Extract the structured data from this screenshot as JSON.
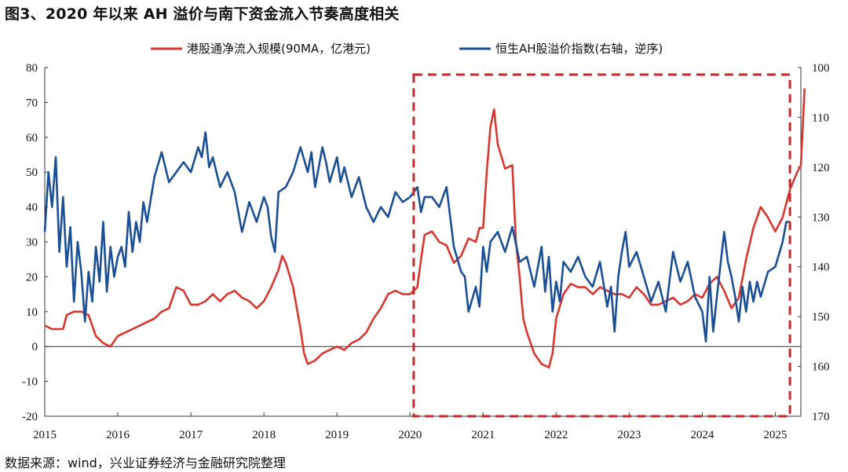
{
  "title": "图3、2020 年以来 AH 溢价与南下资金流入节奏高度相关",
  "source": "数据来源：wind，兴业证券经济与金融研究院整理",
  "colors": {
    "red": "#d9362f",
    "blue": "#1a4f96",
    "highlight": "#c8262a"
  },
  "chart_data": {
    "type": "line",
    "legend": [
      "港股通净流入规模(90MA，亿港元)",
      "恒生AH股溢价指数(右轴，逆序)"
    ],
    "legend_position": "top",
    "x_ticks": [
      "2015",
      "2016",
      "2017",
      "2018",
      "2019",
      "2020",
      "2021",
      "2022",
      "2023",
      "2024",
      "2025"
    ],
    "y_left": {
      "range": [
        -20,
        80
      ],
      "ticks": [
        "-20",
        "-10",
        "0",
        "10",
        "20",
        "30",
        "40",
        "50",
        "60",
        "70",
        "80"
      ]
    },
    "y_right": {
      "range": [
        100,
        170
      ],
      "inverted": true,
      "ticks": [
        "100",
        "110",
        "120",
        "130",
        "140",
        "150",
        "160",
        "170"
      ]
    },
    "highlight_box": {
      "x_start": 2020.05,
      "x_end": 2025.2,
      "style": "dashed"
    },
    "series": [
      {
        "name": "港股通净流入规模(90MA，亿港元)",
        "axis": "left",
        "color": "#d9362f",
        "points": [
          [
            2015.0,
            6
          ],
          [
            2015.1,
            5
          ],
          [
            2015.25,
            5
          ],
          [
            2015.3,
            9
          ],
          [
            2015.4,
            10
          ],
          [
            2015.5,
            10
          ],
          [
            2015.6,
            9
          ],
          [
            2015.7,
            3
          ],
          [
            2015.8,
            1
          ],
          [
            2015.9,
            0
          ],
          [
            2016.0,
            3
          ],
          [
            2016.2,
            5
          ],
          [
            2016.4,
            7
          ],
          [
            2016.5,
            8
          ],
          [
            2016.6,
            10
          ],
          [
            2016.7,
            11
          ],
          [
            2016.8,
            17
          ],
          [
            2016.9,
            16
          ],
          [
            2017.0,
            12
          ],
          [
            2017.1,
            12
          ],
          [
            2017.2,
            13
          ],
          [
            2017.3,
            15
          ],
          [
            2017.4,
            13
          ],
          [
            2017.5,
            15
          ],
          [
            2017.6,
            16
          ],
          [
            2017.7,
            14
          ],
          [
            2017.8,
            13
          ],
          [
            2017.9,
            11
          ],
          [
            2018.0,
            13
          ],
          [
            2018.1,
            17
          ],
          [
            2018.2,
            22
          ],
          [
            2018.25,
            26
          ],
          [
            2018.3,
            24
          ],
          [
            2018.4,
            17
          ],
          [
            2018.5,
            5
          ],
          [
            2018.55,
            -2
          ],
          [
            2018.6,
            -5
          ],
          [
            2018.7,
            -4
          ],
          [
            2018.8,
            -2
          ],
          [
            2018.9,
            -1
          ],
          [
            2019.0,
            0
          ],
          [
            2019.1,
            -1
          ],
          [
            2019.2,
            1
          ],
          [
            2019.3,
            2
          ],
          [
            2019.4,
            4
          ],
          [
            2019.5,
            8
          ],
          [
            2019.6,
            11
          ],
          [
            2019.7,
            15
          ],
          [
            2019.8,
            16
          ],
          [
            2019.9,
            15
          ],
          [
            2020.0,
            15
          ],
          [
            2020.1,
            17
          ],
          [
            2020.15,
            25
          ],
          [
            2020.2,
            32
          ],
          [
            2020.3,
            33
          ],
          [
            2020.4,
            30
          ],
          [
            2020.5,
            29
          ],
          [
            2020.6,
            24
          ],
          [
            2020.7,
            26
          ],
          [
            2020.8,
            31
          ],
          [
            2020.9,
            30
          ],
          [
            2020.95,
            34
          ],
          [
            2021.0,
            34
          ],
          [
            2021.05,
            50
          ],
          [
            2021.1,
            63
          ],
          [
            2021.15,
            68
          ],
          [
            2021.2,
            58
          ],
          [
            2021.3,
            51
          ],
          [
            2021.4,
            52
          ],
          [
            2021.45,
            30
          ],
          [
            2021.5,
            20
          ],
          [
            2021.55,
            8
          ],
          [
            2021.6,
            4
          ],
          [
            2021.7,
            -2
          ],
          [
            2021.8,
            -5
          ],
          [
            2021.9,
            -6
          ],
          [
            2021.95,
            -2
          ],
          [
            2022.0,
            8
          ],
          [
            2022.1,
            15
          ],
          [
            2022.2,
            18
          ],
          [
            2022.3,
            17
          ],
          [
            2022.4,
            17
          ],
          [
            2022.5,
            15
          ],
          [
            2022.6,
            17
          ],
          [
            2022.7,
            16
          ],
          [
            2022.8,
            15
          ],
          [
            2022.9,
            15
          ],
          [
            2023.0,
            14
          ],
          [
            2023.1,
            17
          ],
          [
            2023.2,
            15
          ],
          [
            2023.3,
            12
          ],
          [
            2023.4,
            12
          ],
          [
            2023.5,
            13
          ],
          [
            2023.6,
            14
          ],
          [
            2023.7,
            12
          ],
          [
            2023.8,
            13
          ],
          [
            2023.9,
            15
          ],
          [
            2024.0,
            14
          ],
          [
            2024.1,
            18
          ],
          [
            2024.2,
            20
          ],
          [
            2024.3,
            16
          ],
          [
            2024.4,
            11
          ],
          [
            2024.5,
            14
          ],
          [
            2024.6,
            25
          ],
          [
            2024.7,
            34
          ],
          [
            2024.8,
            40
          ],
          [
            2024.9,
            37
          ],
          [
            2025.0,
            33
          ],
          [
            2025.1,
            37
          ],
          [
            2025.2,
            45
          ],
          [
            2025.3,
            50
          ],
          [
            2025.35,
            52
          ],
          [
            2025.4,
            74
          ]
        ]
      },
      {
        "name": "恒生AH股溢价指数(右轴，逆序)",
        "axis": "right",
        "color": "#1a4f96",
        "points": [
          [
            2015.0,
            133
          ],
          [
            2015.05,
            121
          ],
          [
            2015.1,
            128
          ],
          [
            2015.15,
            118
          ],
          [
            2015.2,
            137
          ],
          [
            2015.25,
            126
          ],
          [
            2015.3,
            140
          ],
          [
            2015.35,
            132
          ],
          [
            2015.4,
            147
          ],
          [
            2015.45,
            135
          ],
          [
            2015.5,
            141
          ],
          [
            2015.55,
            151
          ],
          [
            2015.6,
            141
          ],
          [
            2015.65,
            147
          ],
          [
            2015.7,
            136
          ],
          [
            2015.75,
            143
          ],
          [
            2015.8,
            131
          ],
          [
            2015.85,
            145
          ],
          [
            2015.9,
            136
          ],
          [
            2015.95,
            142
          ],
          [
            2016.0,
            138
          ],
          [
            2016.05,
            136
          ],
          [
            2016.1,
            140
          ],
          [
            2016.15,
            129
          ],
          [
            2016.2,
            137
          ],
          [
            2016.25,
            131
          ],
          [
            2016.3,
            135
          ],
          [
            2016.35,
            127
          ],
          [
            2016.4,
            131
          ],
          [
            2016.5,
            122
          ],
          [
            2016.6,
            117
          ],
          [
            2016.7,
            123
          ],
          [
            2016.8,
            121
          ],
          [
            2016.9,
            119
          ],
          [
            2017.0,
            121
          ],
          [
            2017.1,
            116
          ],
          [
            2017.15,
            118
          ],
          [
            2017.2,
            113
          ],
          [
            2017.25,
            120
          ],
          [
            2017.3,
            118
          ],
          [
            2017.4,
            124
          ],
          [
            2017.5,
            121
          ],
          [
            2017.6,
            125
          ],
          [
            2017.7,
            133
          ],
          [
            2017.8,
            127
          ],
          [
            2017.9,
            131
          ],
          [
            2018.0,
            126
          ],
          [
            2018.05,
            128
          ],
          [
            2018.1,
            134
          ],
          [
            2018.15,
            137
          ],
          [
            2018.2,
            125
          ],
          [
            2018.3,
            124
          ],
          [
            2018.4,
            121
          ],
          [
            2018.5,
            116
          ],
          [
            2018.6,
            121
          ],
          [
            2018.65,
            117
          ],
          [
            2018.7,
            124
          ],
          [
            2018.8,
            116
          ],
          [
            2018.85,
            119
          ],
          [
            2018.9,
            123
          ],
          [
            2019.0,
            118
          ],
          [
            2019.05,
            123
          ],
          [
            2019.1,
            120
          ],
          [
            2019.2,
            126
          ],
          [
            2019.3,
            122
          ],
          [
            2019.4,
            128
          ],
          [
            2019.5,
            131
          ],
          [
            2019.6,
            128
          ],
          [
            2019.7,
            130
          ],
          [
            2019.8,
            125
          ],
          [
            2019.9,
            127
          ],
          [
            2020.0,
            126
          ],
          [
            2020.1,
            124
          ],
          [
            2020.15,
            129
          ],
          [
            2020.2,
            126
          ],
          [
            2020.3,
            126
          ],
          [
            2020.4,
            128
          ],
          [
            2020.5,
            124
          ],
          [
            2020.6,
            136
          ],
          [
            2020.7,
            141
          ],
          [
            2020.75,
            142
          ],
          [
            2020.8,
            149
          ],
          [
            2020.9,
            144
          ],
          [
            2020.95,
            148
          ],
          [
            2021.0,
            136
          ],
          [
            2021.05,
            141
          ],
          [
            2021.1,
            135
          ],
          [
            2021.2,
            133
          ],
          [
            2021.3,
            137
          ],
          [
            2021.4,
            132
          ],
          [
            2021.5,
            139
          ],
          [
            2021.6,
            138
          ],
          [
            2021.7,
            144
          ],
          [
            2021.8,
            136
          ],
          [
            2021.85,
            145
          ],
          [
            2021.9,
            138
          ],
          [
            2021.95,
            149
          ],
          [
            2022.0,
            143
          ],
          [
            2022.05,
            147
          ],
          [
            2022.1,
            139
          ],
          [
            2022.2,
            141
          ],
          [
            2022.3,
            138
          ],
          [
            2022.4,
            142
          ],
          [
            2022.5,
            144
          ],
          [
            2022.6,
            139
          ],
          [
            2022.7,
            148
          ],
          [
            2022.75,
            144
          ],
          [
            2022.8,
            153
          ],
          [
            2022.85,
            142
          ],
          [
            2022.9,
            137
          ],
          [
            2022.95,
            133
          ],
          [
            2023.0,
            140
          ],
          [
            2023.1,
            137
          ],
          [
            2023.2,
            142
          ],
          [
            2023.3,
            147
          ],
          [
            2023.4,
            143
          ],
          [
            2023.5,
            149
          ],
          [
            2023.6,
            137
          ],
          [
            2023.7,
            143
          ],
          [
            2023.8,
            139
          ],
          [
            2023.9,
            146
          ],
          [
            2024.0,
            149
          ],
          [
            2024.05,
            155
          ],
          [
            2024.1,
            142
          ],
          [
            2024.15,
            153
          ],
          [
            2024.2,
            146
          ],
          [
            2024.3,
            133
          ],
          [
            2024.35,
            139
          ],
          [
            2024.4,
            142
          ],
          [
            2024.45,
            146
          ],
          [
            2024.5,
            151
          ],
          [
            2024.55,
            144
          ],
          [
            2024.6,
            149
          ],
          [
            2024.65,
            143
          ],
          [
            2024.7,
            147
          ],
          [
            2024.75,
            143
          ],
          [
            2024.8,
            146
          ],
          [
            2024.9,
            141
          ],
          [
            2025.0,
            140
          ],
          [
            2025.1,
            135
          ],
          [
            2025.15,
            131
          ],
          [
            2025.2,
            131
          ]
        ]
      }
    ]
  }
}
